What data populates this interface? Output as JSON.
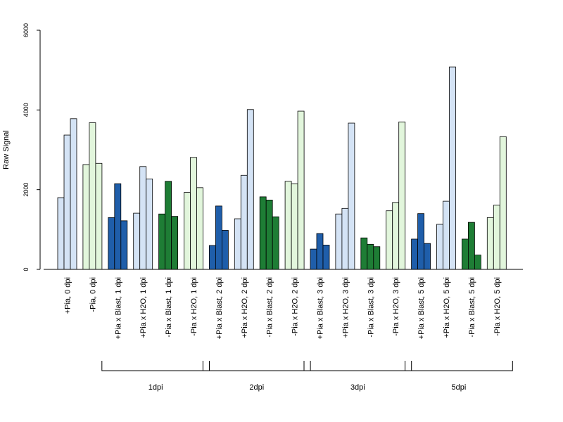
{
  "chart_data": {
    "type": "bar",
    "ylabel": "Raw Signal",
    "ylim": [
      0,
      6000
    ],
    "yticks": [
      0,
      2000,
      4000,
      6000
    ],
    "categories": [
      "+Pia, 0 dpi",
      "-Pia, 0 dpi",
      "+Pia x Blast, 1 dpi",
      "+Pia x H2O, 1 dpi",
      "-Pia x Blast, 1 dpi",
      "-Pia x H2O, 1 dpi",
      "+Pia x Blast, 2 dpi",
      "+Pia x H2O, 2 dpi",
      "-Pia x Blast, 2 dpi",
      "-Pia x H2O, 2 dpi",
      "+Pia x Blast, 3 dpi",
      "+Pia x H2O, 3 dpi",
      "-Pia x Blast, 3 dpi",
      "-Pia x H2O, 3 dpi",
      "+Pia x Blast, 5 dpi",
      "+Pia x H2O, 5 dpi",
      "-Pia x Blast, 5 dpi",
      "-Pia x H2O, 5 dpi"
    ],
    "values": [
      [
        1800,
        3370,
        3780
      ],
      [
        2630,
        3680,
        2660
      ],
      [
        1300,
        2150,
        1220
      ],
      [
        1410,
        2580,
        2270
      ],
      [
        1390,
        2210,
        1330
      ],
      [
        1930,
        2810,
        2050
      ],
      [
        600,
        1590,
        980
      ],
      [
        1270,
        2360,
        4010
      ],
      [
        1820,
        1740,
        1320
      ],
      [
        2210,
        2150,
        3970
      ],
      [
        510,
        900,
        610
      ],
      [
        1390,
        1530,
        3670
      ],
      [
        790,
        630,
        570
      ],
      [
        1470,
        1680,
        3700
      ],
      [
        760,
        1400,
        650
      ],
      [
        1130,
        1710,
        5080
      ],
      [
        760,
        1180,
        360
      ],
      [
        1300,
        1610,
        3330
      ]
    ],
    "colors": [
      "#d4e3f5",
      "#e2f6dc",
      "#1f5eaa",
      "#d4e3f5",
      "#1e7d35",
      "#e2f6dc",
      "#1f5eaa",
      "#d4e3f5",
      "#1e7d35",
      "#e2f6dc",
      "#1f5eaa",
      "#d4e3f5",
      "#1e7d35",
      "#e2f6dc",
      "#1f5eaa",
      "#d4e3f5",
      "#1e7d35",
      "#e2f6dc"
    ],
    "groups": [
      {
        "label": "1dpi",
        "from": 2,
        "to": 5
      },
      {
        "label": "2dpi",
        "from": 6,
        "to": 9
      },
      {
        "label": "3dpi",
        "from": 10,
        "to": 13
      },
      {
        "label": "5dpi",
        "from": 14,
        "to": 17
      }
    ],
    "grid": false
  }
}
